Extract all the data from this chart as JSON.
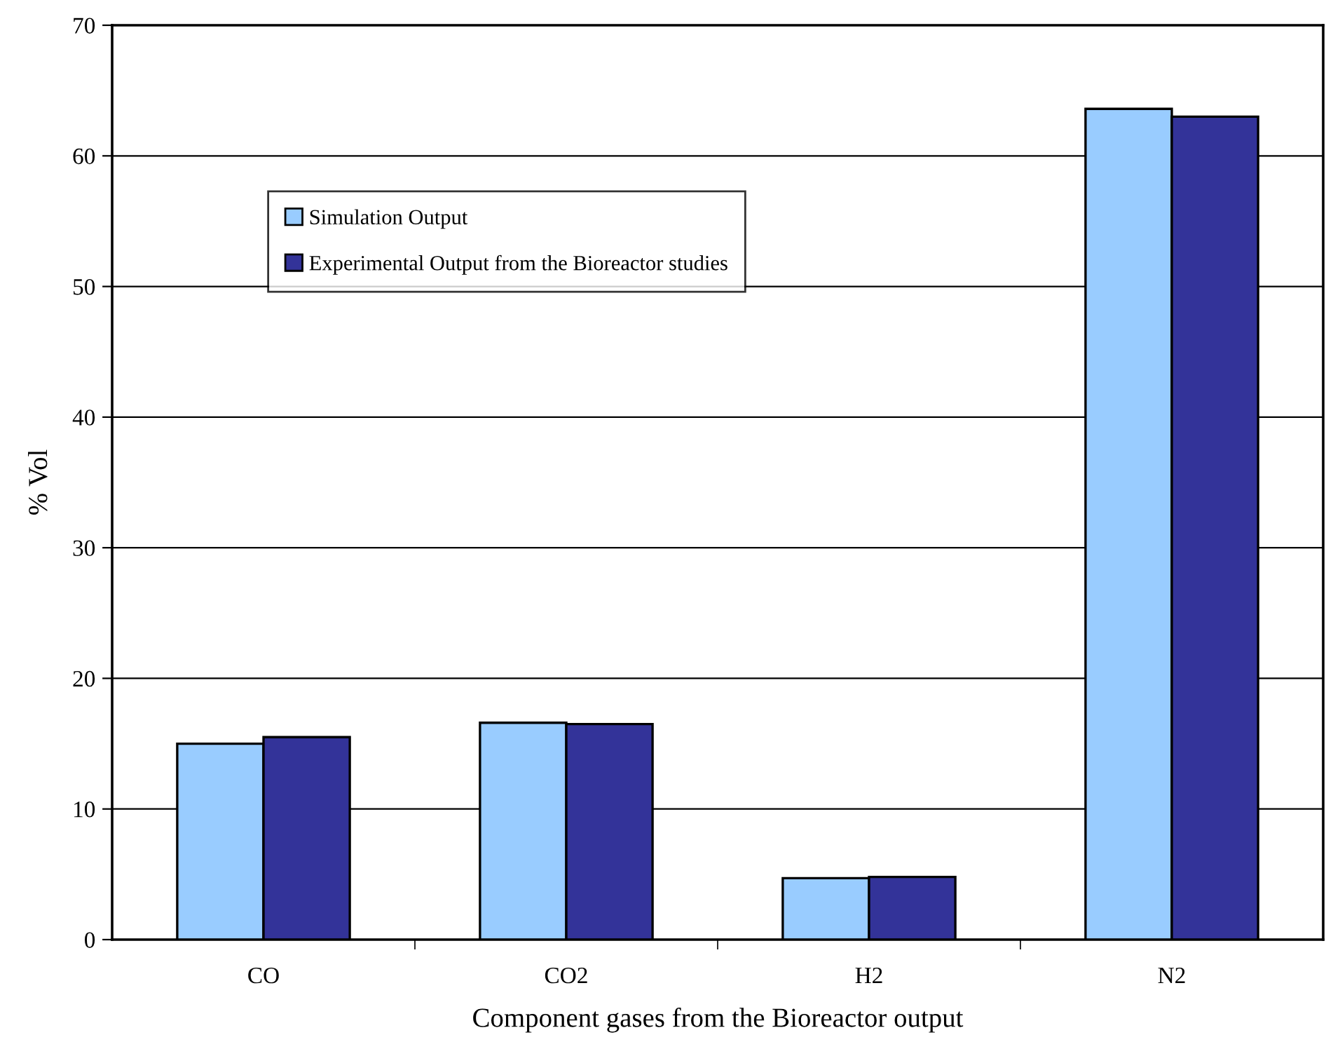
{
  "chart_data": {
    "type": "bar",
    "xlabel": "Component gases from the Bioreactor output",
    "ylabel": "% Vol",
    "categories": [
      "CO",
      "CO2",
      "H2",
      "N2"
    ],
    "series": [
      {
        "name": "Simulation Output",
        "color": "#99ccff",
        "values": [
          15.0,
          16.6,
          4.7,
          63.6
        ]
      },
      {
        "name": "Experimental Output from the Bioreactor studies",
        "color": "#333399",
        "values": [
          15.5,
          16.5,
          4.8,
          63.0
        ]
      }
    ],
    "ylim": [
      0,
      70
    ],
    "yticks": [
      0,
      10,
      20,
      30,
      40,
      50,
      60,
      70
    ],
    "grid": "y",
    "legend": "top left"
  }
}
